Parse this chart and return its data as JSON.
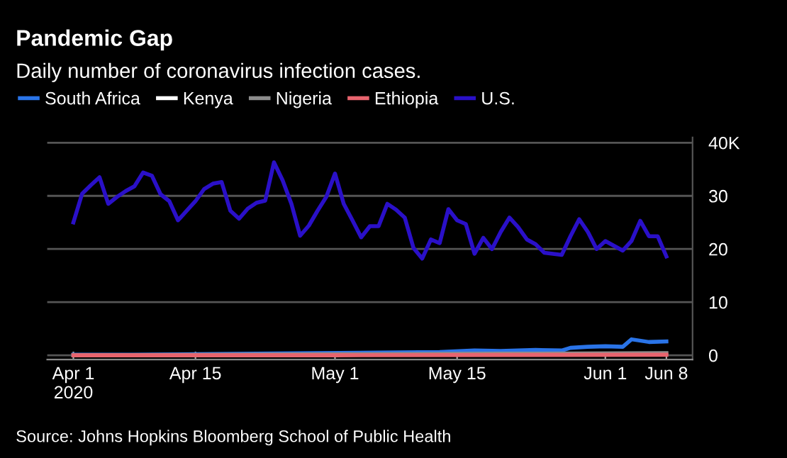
{
  "chart_data": {
    "type": "line",
    "title": "Pandemic Gap",
    "subtitle": "Daily number of coronavirus infection cases.",
    "annotations": [
      "Source: Johns Hopkins Bloomberg School of Public Health"
    ],
    "series": [
      {
        "name": "South Africa",
        "color": "#2a74e8",
        "x": [
          "2020-04-01",
          "2020-04-08",
          "2020-04-15",
          "2020-04-22",
          "2020-04-29",
          "2020-05-06",
          "2020-05-13",
          "2020-05-17",
          "2020-05-20",
          "2020-05-24",
          "2020-05-27",
          "2020-05-28",
          "2020-05-30",
          "2020-06-01",
          "2020-06-03",
          "2020-06-04",
          "2020-06-06",
          "2020-06-08"
        ],
        "values": [
          0.1,
          0.1,
          0.2,
          0.3,
          0.4,
          0.5,
          0.6,
          0.9,
          0.8,
          1.0,
          0.9,
          1.4,
          1.6,
          1.7,
          1.6,
          3.0,
          2.5,
          2.6
        ]
      },
      {
        "name": "Kenya",
        "color": "#ffffff"
      },
      {
        "name": "Nigeria",
        "color": "#8c8c8c",
        "x": [
          "2020-04-01",
          "2020-05-01",
          "2020-05-20",
          "2020-06-08"
        ],
        "values": [
          0.0,
          0.2,
          0.3,
          0.4
        ]
      },
      {
        "name": "Ethiopia",
        "color": "#e8646e",
        "x": [
          "2020-04-01",
          "2020-05-01",
          "2020-06-08"
        ],
        "values": [
          0.0,
          0.0,
          0.1
        ]
      },
      {
        "name": "U.S.",
        "color": "#2a10c8",
        "x": [
          "2020-04-01",
          "2020-04-02",
          "2020-04-03",
          "2020-04-04",
          "2020-04-05",
          "2020-04-06",
          "2020-04-07",
          "2020-04-08",
          "2020-04-09",
          "2020-04-10",
          "2020-04-11",
          "2020-04-12",
          "2020-04-13",
          "2020-04-14",
          "2020-04-15",
          "2020-04-16",
          "2020-04-17",
          "2020-04-18",
          "2020-04-19",
          "2020-04-20",
          "2020-04-21",
          "2020-04-22",
          "2020-04-23",
          "2020-04-24",
          "2020-04-25",
          "2020-04-26",
          "2020-04-27",
          "2020-04-28",
          "2020-04-29",
          "2020-04-30",
          "2020-05-01",
          "2020-05-02",
          "2020-05-03",
          "2020-05-04",
          "2020-05-05",
          "2020-05-06",
          "2020-05-07",
          "2020-05-08",
          "2020-05-09",
          "2020-05-10",
          "2020-05-11",
          "2020-05-12",
          "2020-05-13",
          "2020-05-14",
          "2020-05-15",
          "2020-05-16",
          "2020-05-17",
          "2020-05-18",
          "2020-05-19",
          "2020-05-20",
          "2020-05-21",
          "2020-05-22",
          "2020-05-23",
          "2020-05-24",
          "2020-05-25",
          "2020-05-26",
          "2020-05-27",
          "2020-05-28",
          "2020-05-29",
          "2020-05-30",
          "2020-05-31",
          "2020-06-01",
          "2020-06-02",
          "2020-06-03",
          "2020-06-04",
          "2020-06-05",
          "2020-06-06",
          "2020-06-07",
          "2020-06-08"
        ],
        "values": [
          25.0,
          30.4,
          32.0,
          33.5,
          28.5,
          29.8,
          30.9,
          31.8,
          34.4,
          33.8,
          30.3,
          29.0,
          25.4,
          27.2,
          29.0,
          31.3,
          32.3,
          32.6,
          27.2,
          25.7,
          27.6,
          28.7,
          29.1,
          36.3,
          32.9,
          28.5,
          22.5,
          24.4,
          27.2,
          29.8,
          34.2,
          28.5,
          25.4,
          22.2,
          24.3,
          24.3,
          28.5,
          27.4,
          25.9,
          20.2,
          18.2,
          21.8,
          21.1,
          27.5,
          25.4,
          24.7,
          19.1,
          22.1,
          20.0,
          23.2,
          25.9,
          24.1,
          21.8,
          20.9,
          19.3,
          19.1,
          18.9,
          22.4,
          25.6,
          23.2,
          20.0,
          21.5,
          20.6,
          19.7,
          21.5,
          25.3,
          22.4,
          22.4,
          18.6
        ]
      }
    ],
    "xlim": [
      "2020-03-29",
      "2020-06-11"
    ],
    "xticks": [
      {
        "value": "2020-04-01",
        "label": "Apr 1\n2020"
      },
      {
        "value": "2020-04-15",
        "label": "Apr 15"
      },
      {
        "value": "2020-05-01",
        "label": "May 1"
      },
      {
        "value": "2020-05-15",
        "label": "May 15"
      },
      {
        "value": "2020-06-01",
        "label": "Jun 1"
      },
      {
        "value": "2020-06-08",
        "label": "Jun 8"
      }
    ],
    "ylim": [
      -0.8,
      41
    ],
    "yticks": [
      0,
      10,
      20,
      30,
      {
        "value": 40,
        "label": "40K"
      }
    ],
    "grid": "y",
    "legend": "top left",
    "line_style": "solid",
    "marker": "none"
  }
}
